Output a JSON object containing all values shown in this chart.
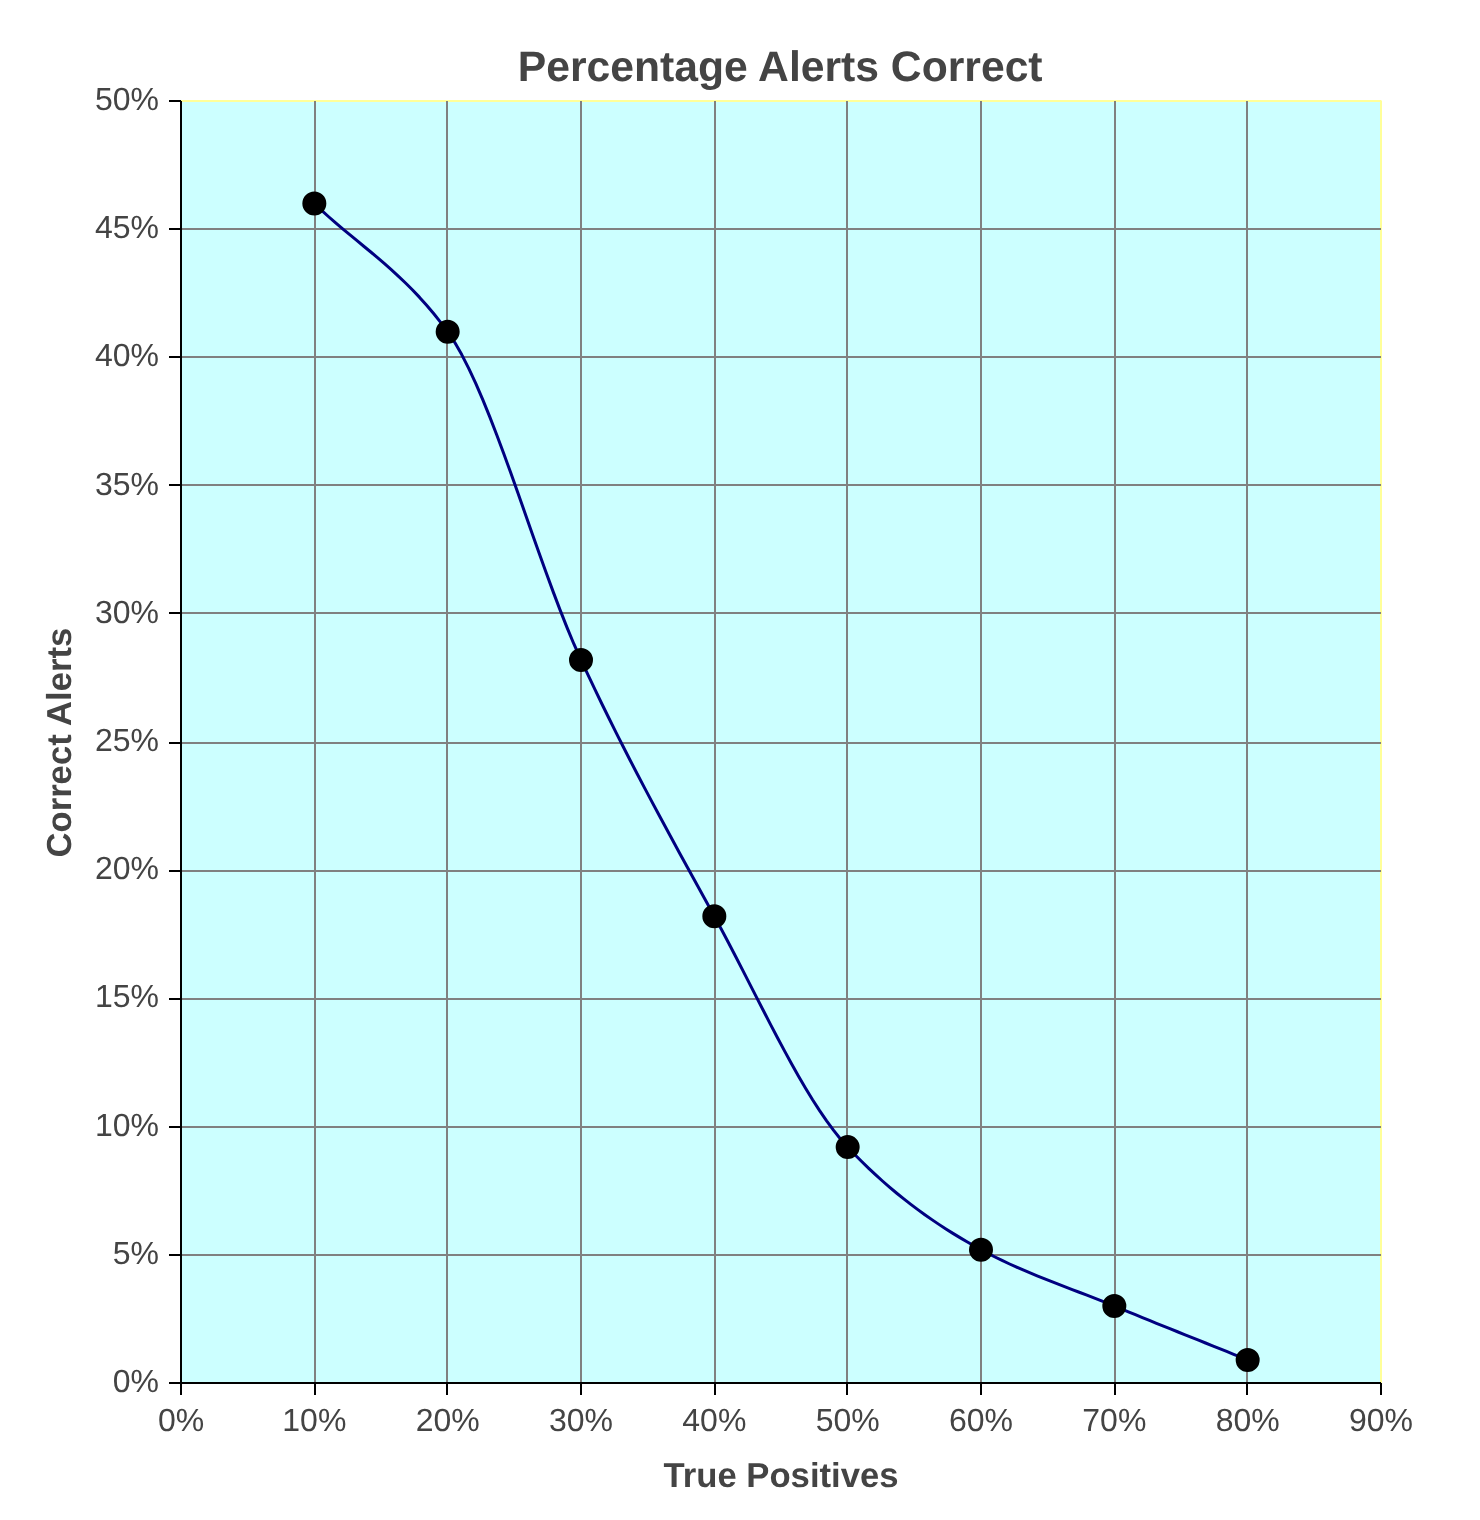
{
  "chart_data": {
    "type": "line",
    "title": "Percentage Alerts Correct",
    "xlabel": "True Positives",
    "ylabel": "Correct Alerts",
    "x": [
      10,
      20,
      30,
      40,
      50,
      60,
      70,
      80
    ],
    "series": [
      {
        "color": "#000080",
        "values": [
          46,
          41,
          28.2,
          18.2,
          9.2,
          5.2,
          3,
          0.9
        ]
      }
    ],
    "marker": "circle",
    "line_style": "solid",
    "grid": true,
    "xlim": [
      0,
      90
    ],
    "xticks": [
      {
        "value": 0,
        "label": "0%"
      },
      {
        "value": 10,
        "label": "10%"
      },
      {
        "value": 20,
        "label": "20%"
      },
      {
        "value": 30,
        "label": "30%"
      },
      {
        "value": 40,
        "label": "40%"
      },
      {
        "value": 50,
        "label": "50%"
      },
      {
        "value": 60,
        "label": "60%"
      },
      {
        "value": 70,
        "label": "70%"
      },
      {
        "value": 80,
        "label": "80%"
      },
      {
        "value": 90,
        "label": "90%"
      }
    ],
    "ylim": [
      0,
      50
    ],
    "yticks": [
      {
        "value": 0,
        "label": "0%"
      },
      {
        "value": 5,
        "label": "5%"
      },
      {
        "value": 10,
        "label": "10%"
      },
      {
        "value": 15,
        "label": "15%"
      },
      {
        "value": 20,
        "label": "20%"
      },
      {
        "value": 25,
        "label": "25%"
      },
      {
        "value": 30,
        "label": "30%"
      },
      {
        "value": 35,
        "label": "35%"
      },
      {
        "value": 40,
        "label": "40%"
      },
      {
        "value": 45,
        "label": "45%"
      },
      {
        "value": 50,
        "label": "50%"
      }
    ]
  }
}
